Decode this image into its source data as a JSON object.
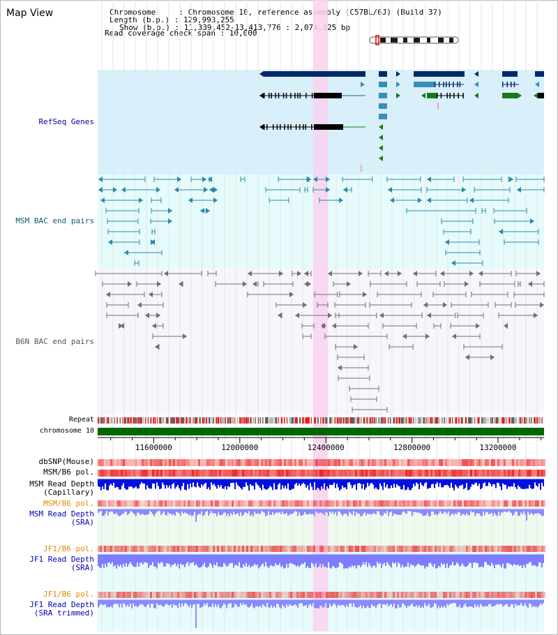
{
  "header": {
    "title": "Map View",
    "chromosome_line": "Chromosome     : Chromosome 10, reference assembly (C57BL/6J) (Build 37)",
    "length_line": "Length (b.p.) : 129,993,255",
    "show_line": "Show (b.p.) : 11,339,452-13,413,776 : 2,074,325 bp",
    "coverage_line": "Read coverage check span : 10,000"
  },
  "region": {
    "start": 11339452,
    "end": 13413776,
    "highlight_start": 12340000,
    "highlight_end": 12410000
  },
  "tracks": {
    "refseq": "RefSeq Genes",
    "msm_bac": "MSM BAC end pairs",
    "b6n_bac": "B6N BAC end pairs",
    "repeat": "Repeat",
    "chromosome": "chromosome 10",
    "dbsnp": "dbSNP(Mouse)",
    "msm_b6_pol": "MSM/B6 pol.",
    "msm_depth_cap_1": "MSM Read Depth",
    "msm_depth_cap_2": "(Capillary)",
    "msm_b6_pol_2": "MSM/B6 pol.",
    "msm_depth_sra_1": "MSM Read Depth",
    "msm_depth_sra_2": "(SRA)",
    "jf1_b6_pol": "JF1/B6 pol.",
    "jf1_depth_1": "JF1 Read Depth",
    "jf1_depth_2": "(SRA)",
    "jf1_b6_pol_2": "JF1/B6 pol.",
    "jf1_trim_1": "JF1 Read Depth",
    "jf1_trim_2": "(SRA trimmed)"
  },
  "axis_ticks": [
    {
      "value": 11600000,
      "label": "11600000"
    },
    {
      "value": 12000000,
      "label": "12000000"
    },
    {
      "value": 12400000,
      "label": "12400000"
    },
    {
      "value": 12800000,
      "label": "12800000"
    },
    {
      "value": 13200000,
      "label": "13200000"
    }
  ],
  "colors": {
    "refseq_bg": "#d8f0fb",
    "msm_bg": "#e6fbfb",
    "b6n_bg": "#f6f6fc",
    "highlight": "#f9d2ef",
    "gene_dark": "#002a66",
    "gene_mid": "#3a8db8",
    "gene_green": "#1a7a1a",
    "msm_bac": "#2d8aa8",
    "b6n_bac": "#707070",
    "chromosome": "#006600",
    "depth_cap": "#0010e0",
    "depth_sra": "#8a8aff",
    "pol": "#f06060"
  }
}
